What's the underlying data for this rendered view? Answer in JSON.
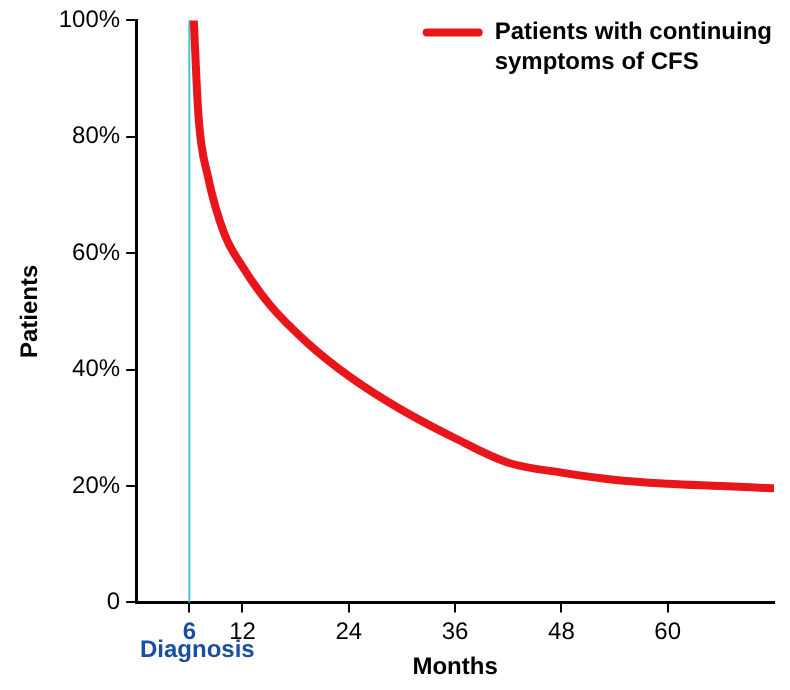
{
  "chart_data": {
    "type": "line",
    "xlabel": "Months",
    "ylabel": "Patients",
    "x": [
      6.5,
      7.05,
      8.1,
      9.96,
      12,
      15.1,
      19.4,
      24,
      29.6,
      36,
      42,
      48,
      54.4,
      60,
      66,
      71.8
    ],
    "series": [
      {
        "name": "Patients with continuing symptoms of CFS",
        "color": "#e8161b",
        "values": [
          100,
          83.2,
          73.2,
          63.3,
          57.7,
          51.1,
          44.5,
          38.9,
          33.4,
          28.2,
          24,
          22.3,
          21,
          20.4,
          20,
          19.6
        ]
      }
    ],
    "xlim": [
      0,
      72
    ],
    "xticks": [
      6,
      12,
      24,
      36,
      48,
      60
    ],
    "ylim": [
      0,
      100
    ],
    "yticks": [
      0,
      {
        "value": 20,
        "label": "20%"
      },
      {
        "value": 40,
        "label": "40%"
      },
      {
        "value": 60,
        "label": "60%"
      },
      {
        "value": 80,
        "label": "80%"
      },
      {
        "value": 100,
        "label": "100%"
      }
    ],
    "ref_lines": [
      {
        "axis": "x",
        "value": 6,
        "label": "Diagnosis",
        "color": "#46c3d6"
      }
    ],
    "grid": false,
    "legend": "top right",
    "marker": "none",
    "line_style": "solid"
  }
}
